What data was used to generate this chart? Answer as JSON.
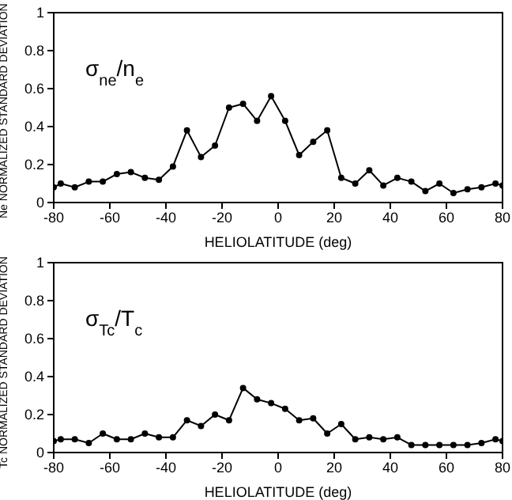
{
  "chart_data": [
    {
      "type": "line",
      "xlabel": "HELIOLATITUDE (deg)",
      "ylabel": "Ne NORMALIZED STANDARD DEVIATION",
      "annotations": [
        "σ$_{ne}$/n$_{e}$"
      ],
      "marker": "circle",
      "line_style": "solid",
      "x": [
        -80,
        -77.5,
        -72.5,
        -67.5,
        -62.5,
        -57.5,
        -52.5,
        -47.5,
        -42.5,
        -37.5,
        -32.5,
        -27.5,
        -22.5,
        -17.5,
        -12.5,
        -7.5,
        -2.5,
        2.5,
        7.5,
        12.5,
        17.5,
        22.5,
        27.5,
        32.5,
        37.5,
        42.5,
        47.5,
        52.5,
        57.5,
        62.5,
        67.5,
        72.5,
        77.5,
        80
      ],
      "series": [
        {
          "color": "#000000",
          "values": [
            0.08,
            0.1,
            0.08,
            0.11,
            0.11,
            0.15,
            0.16,
            0.13,
            0.12,
            0.19,
            0.38,
            0.24,
            0.3,
            0.5,
            0.52,
            0.43,
            0.56,
            0.43,
            0.25,
            0.32,
            0.38,
            0.13,
            0.1,
            0.17,
            0.09,
            0.13,
            0.11,
            0.06,
            0.1,
            0.05,
            0.07,
            0.08,
            0.1,
            0.09
          ]
        }
      ],
      "xlim": [
        -80,
        80
      ],
      "xticks": [
        -80,
        -60,
        -40,
        -20,
        0,
        20,
        40,
        60,
        80
      ],
      "ylim": [
        0,
        1
      ],
      "yticks": [
        0,
        0.2,
        0.4,
        0.6,
        0.8,
        1
      ]
    },
    {
      "type": "line",
      "xlabel": "HELIOLATITUDE (deg)",
      "ylabel": "Tc NORMALIZED STANDARD DEVIATION",
      "annotations": [
        "σ$_{Tc}$/T$_{c}$"
      ],
      "marker": "circle",
      "line_style": "solid",
      "x": [
        -80,
        -77.5,
        -72.5,
        -67.5,
        -62.5,
        -57.5,
        -52.5,
        -47.5,
        -42.5,
        -37.5,
        -32.5,
        -27.5,
        -22.5,
        -17.5,
        -12.5,
        -7.5,
        -2.5,
        2.5,
        7.5,
        12.5,
        17.5,
        22.5,
        27.5,
        32.5,
        37.5,
        42.5,
        47.5,
        52.5,
        57.5,
        62.5,
        67.5,
        72.5,
        77.5,
        80
      ],
      "series": [
        {
          "color": "#000000",
          "values": [
            0.06,
            0.07,
            0.07,
            0.05,
            0.1,
            0.07,
            0.07,
            0.1,
            0.08,
            0.08,
            0.17,
            0.14,
            0.2,
            0.17,
            0.34,
            0.28,
            0.26,
            0.23,
            0.17,
            0.18,
            0.1,
            0.15,
            0.07,
            0.08,
            0.07,
            0.08,
            0.04,
            0.04,
            0.04,
            0.04,
            0.04,
            0.05,
            0.07,
            0.06
          ]
        }
      ],
      "xlim": [
        -80,
        80
      ],
      "xticks": [
        -80,
        -60,
        -40,
        -20,
        0,
        20,
        40,
        60,
        80
      ],
      "ylim": [
        0,
        1
      ],
      "yticks": [
        0,
        0.2,
        0.4,
        0.6,
        0.8,
        1
      ]
    }
  ]
}
